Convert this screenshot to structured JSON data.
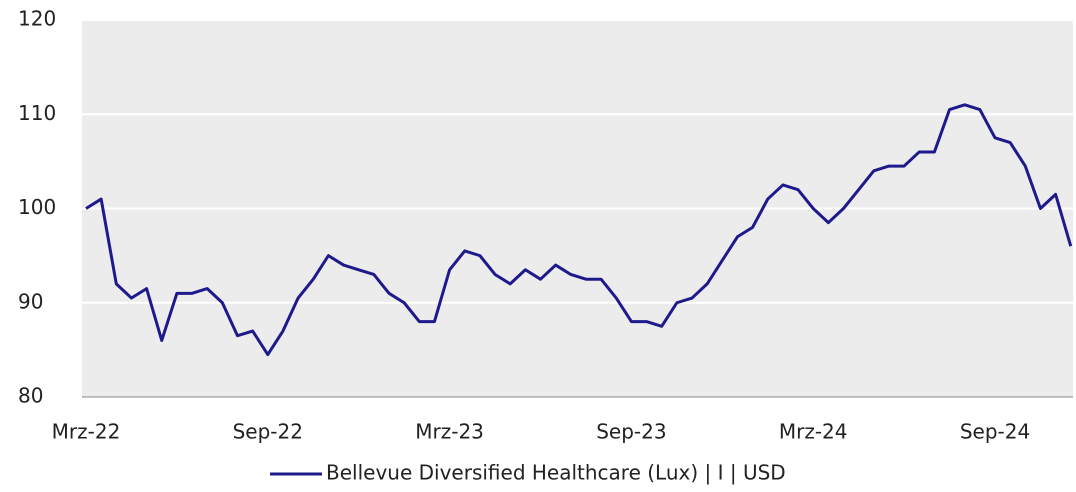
{
  "chart_data": {
    "type": "line",
    "categories": [
      "Mrz-22",
      null,
      null,
      null,
      null,
      null,
      null,
      null,
      null,
      null,
      null,
      null,
      "Sep-22",
      null,
      null,
      null,
      null,
      null,
      null,
      null,
      null,
      null,
      null,
      null,
      "Mrz-23",
      null,
      null,
      null,
      null,
      null,
      null,
      null,
      null,
      null,
      null,
      null,
      "Sep-23",
      null,
      null,
      null,
      null,
      null,
      null,
      null,
      null,
      null,
      null,
      null,
      "Mrz-24",
      null,
      null,
      null,
      null,
      null,
      null,
      null,
      null,
      null,
      null,
      null,
      "Sep-24",
      null,
      null,
      null,
      null,
      null
    ],
    "series": [
      {
        "name": "Bellevue Diversified Healthcare (Lux) | I | USD",
        "color": "#1f1a8c",
        "values": [
          100,
          101,
          92,
          90.5,
          91.5,
          86,
          91,
          91,
          91.5,
          90,
          86.5,
          87,
          84.5,
          87,
          90.5,
          92.5,
          95,
          94,
          93.5,
          93,
          91,
          90,
          88,
          88,
          93.5,
          95.5,
          95,
          93,
          92,
          93.5,
          92.5,
          94,
          93,
          92.5,
          92.5,
          90.5,
          88,
          88,
          87.5,
          90,
          90.5,
          92,
          94.5,
          97,
          98,
          101,
          102.5,
          102,
          100,
          98.5,
          100,
          102,
          104,
          104.5,
          104.5,
          106,
          106,
          110.5,
          111,
          110.5,
          107.5,
          107,
          104.5,
          100,
          101.5,
          96
        ]
      }
    ],
    "ylim": [
      80,
      120
    ],
    "yticks": [
      80,
      90,
      100,
      110,
      120
    ],
    "grid": true,
    "legend": "bottom"
  }
}
